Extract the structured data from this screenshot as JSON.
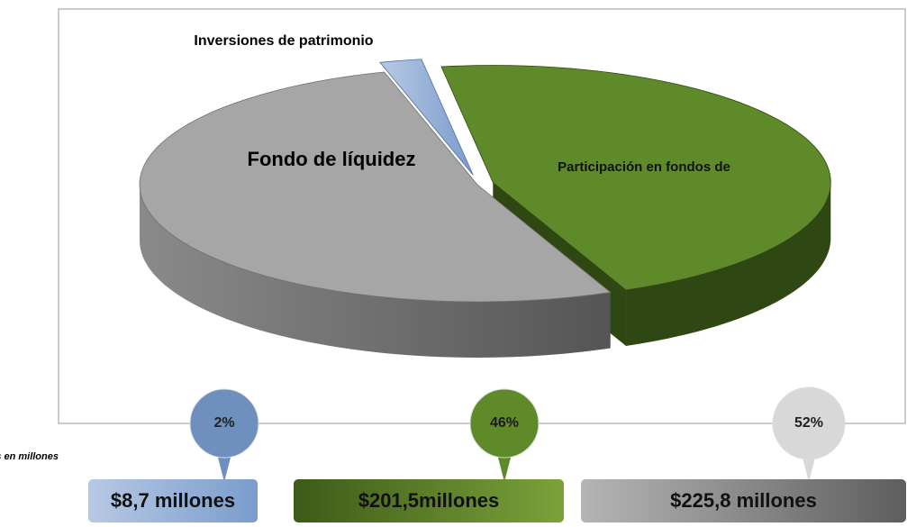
{
  "chart_data": {
    "type": "pie",
    "categories": [
      "Inversiones de patrimonio",
      "Participación en fondos de",
      "Fondo de líquidez"
    ],
    "values": [
      2,
      46,
      52
    ],
    "value_labels": [
      "2%",
      "46%",
      "52%"
    ],
    "colors": [
      "#7a9ccc",
      "#5f8a2a",
      "#a6a6a6"
    ],
    "amounts": [
      "$8,7 millones",
      "$201,5millones",
      "$225,8 millones"
    ],
    "note": "Cifras en millones"
  }
}
